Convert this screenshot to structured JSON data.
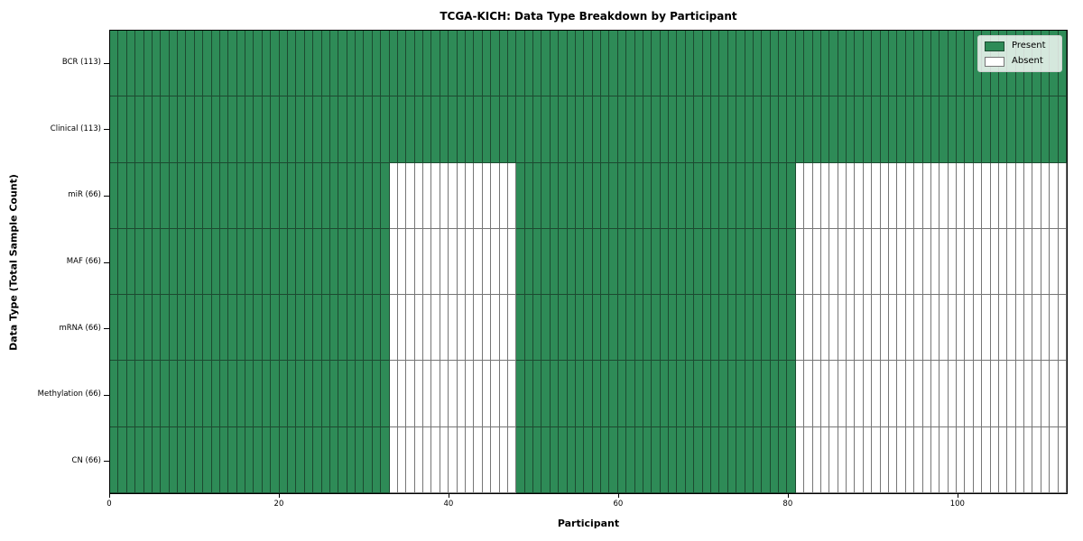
{
  "chart_data": {
    "type": "heatmap",
    "title": "TCGA-KICH: Data Type Breakdown by Participant",
    "xlabel": "Participant",
    "ylabel": "Data Type (Total Sample Count)",
    "x_ticks": [
      0,
      20,
      40,
      60,
      80,
      100
    ],
    "xlim": [
      0,
      113
    ],
    "n_participants": 113,
    "grid": "per-cell edges",
    "legend_position": "upper right",
    "rows": [
      {
        "label": "BCR (113)",
        "data_type": "BCR",
        "total_samples": 113,
        "present_ranges": [
          [
            0,
            113
          ]
        ]
      },
      {
        "label": "Clinical (113)",
        "data_type": "Clinical",
        "total_samples": 113,
        "present_ranges": [
          [
            0,
            113
          ]
        ]
      },
      {
        "label": "miR (66)",
        "data_type": "miR",
        "total_samples": 66,
        "present_ranges": [
          [
            0,
            33
          ],
          [
            48,
            81
          ]
        ]
      },
      {
        "label": "MAF (66)",
        "data_type": "MAF",
        "total_samples": 66,
        "present_ranges": [
          [
            0,
            33
          ],
          [
            48,
            81
          ]
        ]
      },
      {
        "label": "mRNA (66)",
        "data_type": "mRNA",
        "total_samples": 66,
        "present_ranges": [
          [
            0,
            33
          ],
          [
            48,
            81
          ]
        ]
      },
      {
        "label": "Methylation (66)",
        "data_type": "Methylation",
        "total_samples": 66,
        "present_ranges": [
          [
            0,
            33
          ],
          [
            48,
            81
          ]
        ]
      },
      {
        "label": "CN (66)",
        "data_type": "CN",
        "total_samples": 66,
        "present_ranges": [
          [
            0,
            33
          ],
          [
            48,
            81
          ]
        ]
      }
    ],
    "legend": [
      {
        "label": "Present",
        "state": "present",
        "color": "#2e8b57"
      },
      {
        "label": "Absent",
        "state": "absent",
        "color": "#ffffff"
      }
    ],
    "colors": {
      "present_fill": "#2e8b57",
      "absent_fill": "#ffffff",
      "present_edge": "#1c4a30",
      "absent_edge": "#767676",
      "spine": "#000000",
      "background": "#ffffff"
    }
  }
}
